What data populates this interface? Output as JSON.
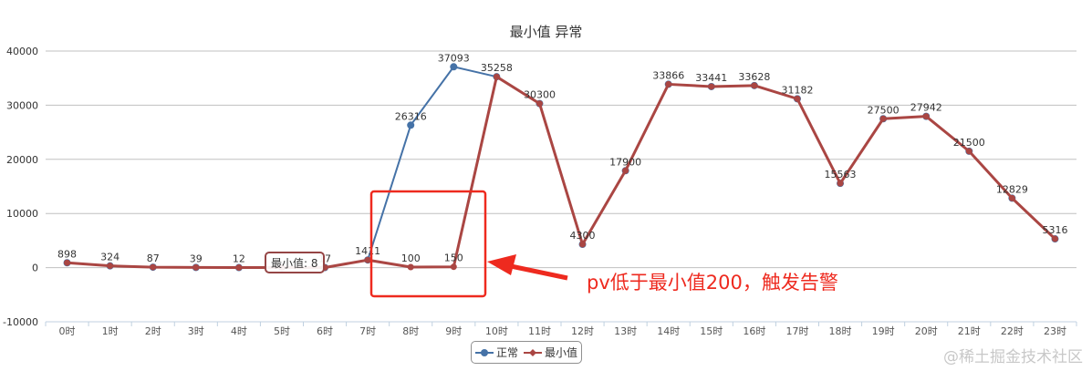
{
  "chart_data": {
    "type": "line",
    "title": "最小值 异常",
    "categories": [
      "0时",
      "1时",
      "2时",
      "3时",
      "4时",
      "5时",
      "6时",
      "7时",
      "8时",
      "9时",
      "10时",
      "11时",
      "12时",
      "13时",
      "14时",
      "15时",
      "16时",
      "17时",
      "18时",
      "19时",
      "20时",
      "21时",
      "22时",
      "23时"
    ],
    "series": [
      {
        "name": "正常",
        "color": "#4572a7",
        "marker": "circle",
        "values": [
          898,
          324,
          87,
          39,
          12,
          8,
          17,
          1411,
          26316,
          37093,
          35258,
          30300,
          4300,
          17900,
          33866,
          33441,
          33628,
          31182,
          15563,
          27500,
          27942,
          21500,
          12829,
          5316
        ]
      },
      {
        "name": "最小值",
        "color": "#aa4643",
        "marker": "diamond",
        "values": [
          898,
          324,
          87,
          39,
          12,
          8,
          17,
          1411,
          100,
          150,
          35258,
          30300,
          4300,
          17900,
          33866,
          33441,
          33628,
          31182,
          15563,
          27500,
          27942,
          21500,
          12829,
          5316
        ]
      }
    ],
    "ylim": [
      -10000,
      40000
    ],
    "yticks": [
      "-10000",
      "0",
      "10000",
      "20000",
      "30000",
      "40000"
    ],
    "grid": true,
    "legend": "bottom-center",
    "tooltip": {
      "label": "最小值",
      "value": "8"
    },
    "annotation": {
      "text": "pv低于最小值200，触发告警",
      "color": "#ee2a1f"
    }
  },
  "watermark": "@稀土掘金技术社区"
}
